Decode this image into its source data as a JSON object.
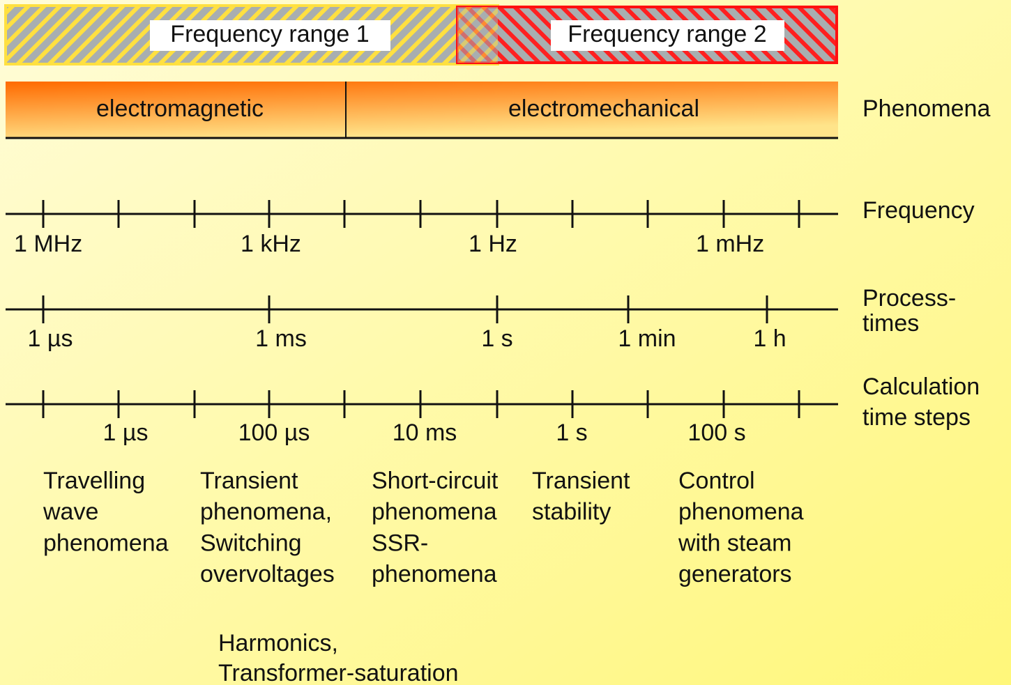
{
  "frequency_ranges": [
    "Frequency range 1",
    "Frequency range 2"
  ],
  "phenomena": {
    "label": "Phenomena",
    "segments": [
      "electromagnetic",
      "electromechanical"
    ]
  },
  "axes": [
    {
      "label": [
        "Frequency"
      ],
      "tick_labels": [
        "1 MHz",
        "1 kHz",
        "1 Hz",
        "1 mHz"
      ]
    },
    {
      "label": [
        "Process-",
        "times"
      ],
      "tick_labels": [
        "1 µs",
        "1 ms",
        "1 s",
        "1 min",
        "1 h"
      ]
    },
    {
      "label": [
        "Calculation",
        "time steps"
      ],
      "tick_labels": [
        "1 µs",
        "100 µs",
        "10 ms",
        "1 s",
        "100 s"
      ]
    }
  ],
  "columns": [
    [
      "Travelling",
      "wave",
      "phenomena"
    ],
    [
      "Transient",
      "phenomena,",
      "Switching",
      "overvoltages"
    ],
    [
      "Short-circuit",
      "phenomena",
      "SSR-",
      "phenomena"
    ],
    [
      "Transient",
      "stability"
    ],
    [
      "Control",
      "phenomena",
      "with steam",
      "generators"
    ]
  ],
  "footer": [
    "Harmonics,",
    "Transformer-saturation"
  ]
}
